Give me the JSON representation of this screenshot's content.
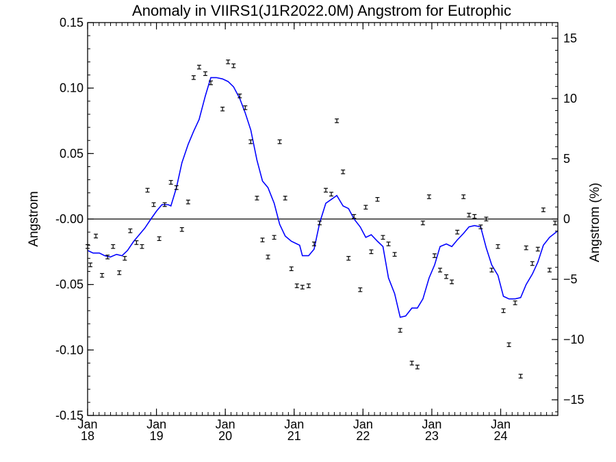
{
  "chart_data": {
    "type": "scatter",
    "title": "Anomaly in VIIRS1(J1R2022.0M) Angstrom for Eutrophic",
    "ylabel": "Angstrom",
    "ylabel_right": "Angstrom (%)",
    "xlabel": "",
    "xlim": [
      2018.0,
      2024.83
    ],
    "ylim": [
      -0.15,
      0.15
    ],
    "ylim_right": [
      -16.3,
      16.3
    ],
    "grid": false,
    "legend": "none",
    "x_ticks": [
      {
        "value": 2018,
        "month": "Jan",
        "year": "18"
      },
      {
        "value": 2019,
        "month": "Jan",
        "year": "19"
      },
      {
        "value": 2020,
        "month": "Jan",
        "year": "20"
      },
      {
        "value": 2021,
        "month": "Jan",
        "year": "21"
      },
      {
        "value": 2022,
        "month": "Jan",
        "year": "22"
      },
      {
        "value": 2023,
        "month": "Jan",
        "year": "23"
      },
      {
        "value": 2024,
        "month": "Jan",
        "year": "24"
      }
    ],
    "y_ticks": [
      {
        "value": 0.15,
        "label": "0.15"
      },
      {
        "value": 0.1,
        "label": "0.10"
      },
      {
        "value": 0.05,
        "label": "0.05"
      },
      {
        "value": 0.0,
        "label": "-0.00"
      },
      {
        "value": -0.05,
        "label": "-0.05"
      },
      {
        "value": -0.1,
        "label": "-0.10"
      },
      {
        "value": -0.15,
        "label": "-0.15"
      }
    ],
    "y_right_ticks": [
      {
        "value": 15,
        "label": "15"
      },
      {
        "value": 10,
        "label": "10"
      },
      {
        "value": 5,
        "label": "5"
      },
      {
        "value": 0,
        "label": "0"
      },
      {
        "value": -5,
        "label": "−5"
      },
      {
        "value": -10,
        "label": "−10"
      },
      {
        "value": -15,
        "label": "−15"
      }
    ],
    "colors": {
      "points": "#000000",
      "line": "#0000ff",
      "zero_line": "#000000"
    },
    "series": [
      {
        "kind": "monthly anomaly points with error bars",
        "error": 0.0009,
        "points": [
          [
            2018.0,
            -0.021
          ],
          [
            2018.04,
            -0.035
          ],
          [
            2018.12,
            -0.013
          ],
          [
            2018.21,
            -0.043
          ],
          [
            2018.29,
            -0.029
          ],
          [
            2018.37,
            -0.021
          ],
          [
            2018.46,
            -0.041
          ],
          [
            2018.54,
            -0.03
          ],
          [
            2018.62,
            -0.009
          ],
          [
            2018.71,
            -0.018
          ],
          [
            2018.79,
            -0.021
          ],
          [
            2018.87,
            0.022
          ],
          [
            2018.96,
            0.011
          ],
          [
            2019.04,
            -0.015
          ],
          [
            2019.12,
            0.011
          ],
          [
            2019.21,
            0.028
          ],
          [
            2019.29,
            0.024
          ],
          [
            2019.37,
            -0.008
          ],
          [
            2019.46,
            0.013
          ],
          [
            2019.54,
            0.108
          ],
          [
            2019.62,
            0.116
          ],
          [
            2019.71,
            0.111
          ],
          [
            2019.79,
            0.104
          ],
          [
            2019.96,
            0.084
          ],
          [
            2020.04,
            0.12
          ],
          [
            2020.12,
            0.117
          ],
          [
            2020.21,
            0.094
          ],
          [
            2020.29,
            0.085
          ],
          [
            2020.37,
            0.059
          ],
          [
            2020.46,
            0.016
          ],
          [
            2020.54,
            -0.016
          ],
          [
            2020.62,
            -0.029
          ],
          [
            2020.71,
            -0.014
          ],
          [
            2020.79,
            0.059
          ],
          [
            2020.87,
            0.016
          ],
          [
            2020.96,
            -0.038
          ],
          [
            2021.04,
            -0.051
          ],
          [
            2021.12,
            -0.052
          ],
          [
            2021.21,
            -0.051
          ],
          [
            2021.29,
            -0.019
          ],
          [
            2021.37,
            -0.003
          ],
          [
            2021.46,
            0.022
          ],
          [
            2021.54,
            0.019
          ],
          [
            2021.62,
            0.075
          ],
          [
            2021.71,
            0.036
          ],
          [
            2021.79,
            -0.03
          ],
          [
            2021.87,
            0.002
          ],
          [
            2021.96,
            -0.054
          ],
          [
            2022.04,
            0.009
          ],
          [
            2022.12,
            -0.025
          ],
          [
            2022.21,
            0.015
          ],
          [
            2022.29,
            -0.014
          ],
          [
            2022.37,
            -0.019
          ],
          [
            2022.46,
            -0.027
          ],
          [
            2022.54,
            -0.085
          ],
          [
            2022.71,
            -0.11
          ],
          [
            2022.79,
            -0.113
          ],
          [
            2022.87,
            -0.003
          ],
          [
            2022.96,
            0.017
          ],
          [
            2023.04,
            -0.028
          ],
          [
            2023.12,
            -0.039
          ],
          [
            2023.21,
            -0.044
          ],
          [
            2023.29,
            -0.048
          ],
          [
            2023.37,
            -0.01
          ],
          [
            2023.46,
            0.017
          ],
          [
            2023.54,
            0.003
          ],
          [
            2023.62,
            0.002
          ],
          [
            2023.71,
            -0.006
          ],
          [
            2023.79,
            0.0
          ],
          [
            2023.87,
            -0.039
          ],
          [
            2023.96,
            -0.021
          ],
          [
            2024.04,
            -0.07
          ],
          [
            2024.12,
            -0.096
          ],
          [
            2024.21,
            -0.064
          ],
          [
            2024.29,
            -0.12
          ],
          [
            2024.37,
            -0.022
          ],
          [
            2024.46,
            -0.034
          ],
          [
            2024.54,
            -0.023
          ],
          [
            2024.62,
            0.007
          ],
          [
            2024.71,
            -0.039
          ],
          [
            2024.79,
            -0.003
          ]
        ]
      },
      {
        "kind": "running mean line",
        "points": [
          [
            2018.0,
            -0.024
          ],
          [
            2018.08,
            -0.026
          ],
          [
            2018.17,
            -0.026
          ],
          [
            2018.25,
            -0.028
          ],
          [
            2018.33,
            -0.029
          ],
          [
            2018.42,
            -0.027
          ],
          [
            2018.5,
            -0.028
          ],
          [
            2018.58,
            -0.024
          ],
          [
            2018.67,
            -0.017
          ],
          [
            2018.75,
            -0.012
          ],
          [
            2018.83,
            -0.007
          ],
          [
            2018.92,
            0.0
          ],
          [
            2019.0,
            0.006
          ],
          [
            2019.08,
            0.011
          ],
          [
            2019.17,
            0.011
          ],
          [
            2019.21,
            0.01
          ],
          [
            2019.29,
            0.024
          ],
          [
            2019.37,
            0.043
          ],
          [
            2019.46,
            0.057
          ],
          [
            2019.54,
            0.067
          ],
          [
            2019.62,
            0.076
          ],
          [
            2019.71,
            0.094
          ],
          [
            2019.79,
            0.108
          ],
          [
            2019.87,
            0.108
          ],
          [
            2019.96,
            0.107
          ],
          [
            2020.04,
            0.105
          ],
          [
            2020.12,
            0.101
          ],
          [
            2020.21,
            0.092
          ],
          [
            2020.29,
            0.081
          ],
          [
            2020.37,
            0.068
          ],
          [
            2020.46,
            0.045
          ],
          [
            2020.54,
            0.029
          ],
          [
            2020.62,
            0.024
          ],
          [
            2020.71,
            0.012
          ],
          [
            2020.79,
            -0.004
          ],
          [
            2020.87,
            -0.013
          ],
          [
            2020.96,
            -0.017
          ],
          [
            2021.04,
            -0.019
          ],
          [
            2021.08,
            -0.02
          ],
          [
            2021.12,
            -0.028
          ],
          [
            2021.21,
            -0.028
          ],
          [
            2021.29,
            -0.023
          ],
          [
            2021.37,
            -0.003
          ],
          [
            2021.46,
            0.012
          ],
          [
            2021.54,
            0.015
          ],
          [
            2021.62,
            0.018
          ],
          [
            2021.71,
            0.01
          ],
          [
            2021.79,
            0.008
          ],
          [
            2021.87,
            0.0
          ],
          [
            2021.96,
            -0.006
          ],
          [
            2022.04,
            -0.014
          ],
          [
            2022.12,
            -0.012
          ],
          [
            2022.21,
            -0.017
          ],
          [
            2022.29,
            -0.021
          ],
          [
            2022.37,
            -0.045
          ],
          [
            2022.46,
            -0.057
          ],
          [
            2022.54,
            -0.075
          ],
          [
            2022.62,
            -0.074
          ],
          [
            2022.71,
            -0.068
          ],
          [
            2022.79,
            -0.068
          ],
          [
            2022.87,
            -0.061
          ],
          [
            2022.96,
            -0.045
          ],
          [
            2023.04,
            -0.035
          ],
          [
            2023.12,
            -0.021
          ],
          [
            2023.21,
            -0.019
          ],
          [
            2023.29,
            -0.021
          ],
          [
            2023.37,
            -0.016
          ],
          [
            2023.46,
            -0.011
          ],
          [
            2023.54,
            -0.006
          ],
          [
            2023.62,
            -0.005
          ],
          [
            2023.71,
            -0.006
          ],
          [
            2023.79,
            -0.022
          ],
          [
            2023.87,
            -0.035
          ],
          [
            2023.96,
            -0.043
          ],
          [
            2024.04,
            -0.059
          ],
          [
            2024.12,
            -0.061
          ],
          [
            2024.21,
            -0.061
          ],
          [
            2024.29,
            -0.06
          ],
          [
            2024.37,
            -0.05
          ],
          [
            2024.46,
            -0.042
          ],
          [
            2024.54,
            -0.033
          ],
          [
            2024.62,
            -0.02
          ],
          [
            2024.71,
            -0.014
          ],
          [
            2024.83,
            -0.009
          ]
        ]
      }
    ]
  }
}
